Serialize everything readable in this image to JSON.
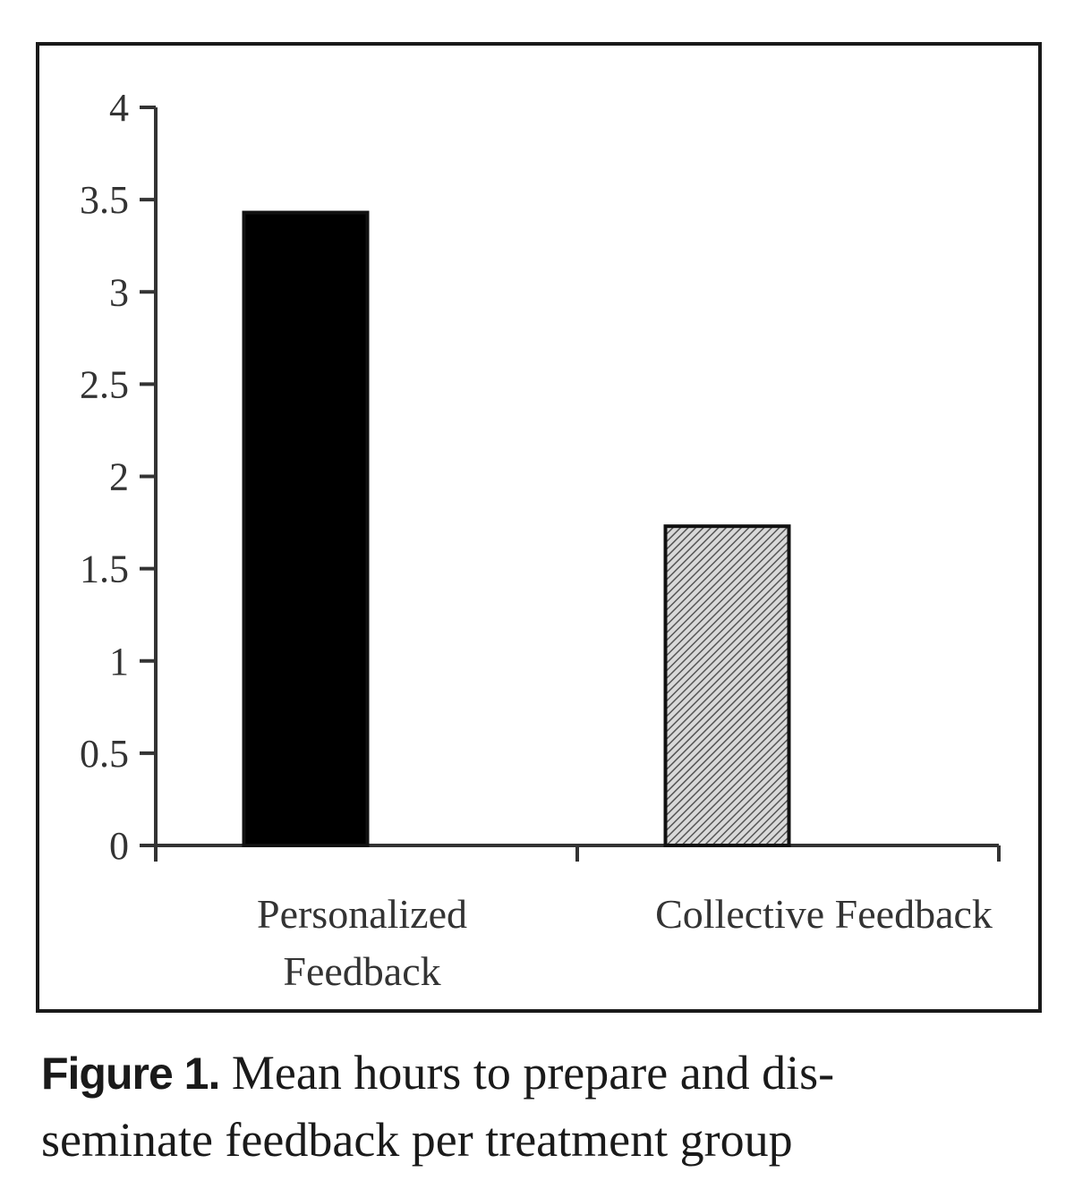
{
  "chart_data": {
    "type": "bar",
    "categories": [
      "Personalized Feedback",
      "Collective Feedback"
    ],
    "category_label_lines": [
      [
        "Personalized",
        "Feedback"
      ],
      [
        "Collective Feedback"
      ]
    ],
    "values": [
      3.43,
      1.73
    ],
    "bar_colors": [
      "#000000",
      "#a8a8a8"
    ],
    "bar_patterns": [
      "solid",
      "hatched"
    ],
    "ylim": [
      0,
      4
    ],
    "yticks": [
      0,
      0.5,
      1,
      1.5,
      2,
      2.5,
      3,
      3.5,
      4
    ],
    "ytick_labels": [
      "0",
      "0.5",
      "1",
      "1.5",
      "2",
      "2.5",
      "3",
      "3.5",
      "4"
    ],
    "title": "",
    "xlabel": "",
    "ylabel": "",
    "grid": false,
    "legend": false
  },
  "caption": {
    "label": "Figure 1.",
    "text": "Mean hours to prepare and dis-seminate feedback per treatment group",
    "line1": "Mean hours to prepare and dis-",
    "line2": "seminate feedback per treatment group"
  },
  "colors": {
    "axis": "#333333",
    "frame": "#1a1a1a",
    "text": "#1a1a1a"
  }
}
